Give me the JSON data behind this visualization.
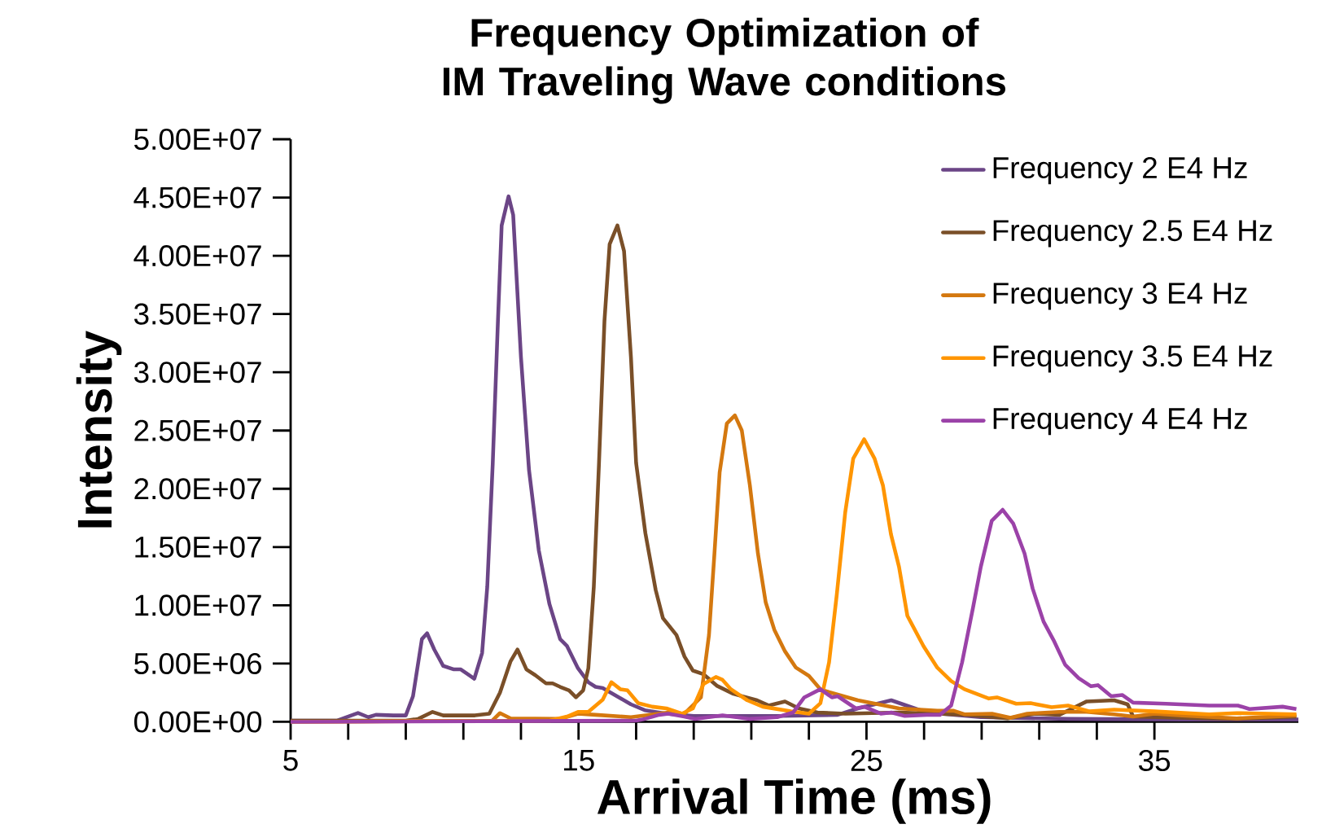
{
  "chart_data": {
    "type": "line",
    "title": "Frequency Optimization of IM Traveling Wave conditions",
    "xlabel": "Arrival Time (ms)",
    "ylabel": "Intensity",
    "xlim": [
      5,
      40
    ],
    "ylim": [
      0,
      50000000
    ],
    "xticks": [
      5,
      15,
      25,
      35
    ],
    "yticks": [
      {
        "value": 0,
        "label": "0.00E+00"
      },
      {
        "value": 5000000,
        "label": "5.00E+06"
      },
      {
        "value": 10000000,
        "label": "1.00E+07"
      },
      {
        "value": 15000000,
        "label": "1.50E+07"
      },
      {
        "value": 20000000,
        "label": "2.00E+07"
      },
      {
        "value": 25000000,
        "label": "2.50E+07"
      },
      {
        "value": 30000000,
        "label": "3.00E+07"
      },
      {
        "value": 35000000,
        "label": "3.50E+07"
      },
      {
        "value": 40000000,
        "label": "4.00E+07"
      },
      {
        "value": 45000000,
        "label": "4.50E+07"
      },
      {
        "value": 50000000,
        "label": "5.00E+07"
      }
    ],
    "legend": "top right",
    "grid": false,
    "series": [
      {
        "name": "Frequency 2 E4 Hz",
        "color": "#6b4586",
        "x": [
          5,
          6.6,
          7.34,
          7.7,
          7.96,
          8.57,
          9.0,
          9.25,
          9.56,
          9.74,
          9.99,
          10.3,
          10.67,
          10.91,
          11.2,
          11.38,
          11.65,
          11.83,
          12.02,
          12.2,
          12.33,
          12.57,
          12.73,
          13.0,
          13.28,
          13.62,
          13.99,
          14.36,
          14.6,
          14.98,
          15.34,
          15.59,
          15.84,
          16.33,
          16.82,
          17.3,
          18.05,
          19.0,
          20.0,
          22.0,
          24.0,
          24.7,
          25.86,
          27.09,
          28.97,
          32.0,
          36.0,
          40.0
        ],
        "values": [
          100000,
          100000,
          760000,
          400000,
          600000,
          550000,
          550000,
          2200000,
          7100000,
          7600000,
          6200000,
          4800000,
          4500000,
          4500000,
          4000000,
          3700000,
          5900000,
          11600000,
          22200000,
          34400000,
          42600000,
          45100000,
          43500000,
          31300000,
          21600000,
          14700000,
          10100000,
          7100000,
          6500000,
          4600000,
          3400000,
          3000000,
          2900000,
          2200000,
          1500000,
          1000000,
          700000,
          500000,
          500000,
          500000,
          600000,
          1150000,
          1850000,
          800000,
          400000,
          250000,
          200000,
          200000
        ]
      },
      {
        "name": "Frequency 2.5 E4 Hz",
        "color": "#7a4f28",
        "x": [
          5,
          9.0,
          9.43,
          9.93,
          10.3,
          11.4,
          11.9,
          12.27,
          12.64,
          12.88,
          13.19,
          13.5,
          13.87,
          14.1,
          14.36,
          14.67,
          14.91,
          15.16,
          15.34,
          15.53,
          15.71,
          15.9,
          16.08,
          16.35,
          16.58,
          16.82,
          17.0,
          17.32,
          17.68,
          17.93,
          18.4,
          18.68,
          18.97,
          19.33,
          19.8,
          20.38,
          21.2,
          21.6,
          22.17,
          22.65,
          23.3,
          24.26,
          26.13,
          27.5,
          28.5,
          29.9,
          30.86,
          31.7,
          32.65,
          33.6,
          34.07,
          34.26,
          35.96,
          37.86,
          39.93
        ],
        "values": [
          100000,
          100000,
          250000,
          850000,
          550000,
          550000,
          700000,
          2500000,
          5200000,
          6200000,
          4500000,
          4000000,
          3300000,
          3300000,
          3000000,
          2700000,
          2100000,
          2700000,
          4600000,
          11600000,
          22200000,
          34400000,
          41000000,
          42600000,
          40400000,
          31300000,
          22200000,
          16200000,
          11300000,
          8900000,
          7450000,
          5600000,
          4400000,
          4100000,
          3100000,
          2400000,
          1850000,
          1400000,
          1750000,
          1150000,
          800000,
          700000,
          800000,
          700000,
          600000,
          300000,
          700000,
          600000,
          1750000,
          1850000,
          1500000,
          450000,
          350000,
          250000,
          450000
        ]
      },
      {
        "name": "Frequency 3 E4 Hz",
        "color": "#d4780f",
        "x": [
          5,
          12.0,
          12.27,
          12.64,
          14.36,
          14.98,
          15.59,
          16.82,
          18.12,
          18.68,
          19.25,
          19.53,
          19.72,
          19.9,
          20.15,
          20.43,
          20.67,
          20.95,
          21.23,
          21.5,
          21.8,
          22.17,
          22.55,
          23.0,
          23.4,
          23.7,
          24.7,
          26.13,
          27.46,
          28.03,
          28.4,
          29.36,
          30.0,
          30.58,
          31.7,
          32.65,
          33.6,
          34.26,
          35.0,
          35.96,
          37.86,
          39.93
        ],
        "values": [
          0,
          100000,
          750000,
          300000,
          250000,
          700000,
          600000,
          400000,
          800000,
          700000,
          2100000,
          7450000,
          14450000,
          21400000,
          25600000,
          26300000,
          25000000,
          20300000,
          14450000,
          10250000,
          7900000,
          6050000,
          4650000,
          3950000,
          2800000,
          2550000,
          1850000,
          1150000,
          950000,
          950000,
          650000,
          700000,
          350000,
          700000,
          850000,
          850000,
          650000,
          450000,
          700000,
          550000,
          300000,
          550000
        ]
      },
      {
        "name": "Frequency 3.5 E4 Hz",
        "color": "#ff9500",
        "x": [
          5,
          14.0,
          14.6,
          14.98,
          15.34,
          15.84,
          16.14,
          16.45,
          16.7,
          17.07,
          17.56,
          18.05,
          18.59,
          18.97,
          19.34,
          19.77,
          20.0,
          20.29,
          20.86,
          21.4,
          22.37,
          23.0,
          23.4,
          23.7,
          23.97,
          24.26,
          24.54,
          24.92,
          25.28,
          25.57,
          25.85,
          26.13,
          26.42,
          26.98,
          27.46,
          27.94,
          28.4,
          29.25,
          29.53,
          30.2,
          30.7,
          31.43,
          32.0,
          32.75,
          33.6,
          35.0,
          36.9,
          37.86,
          39.93
        ],
        "values": [
          0,
          100000,
          450000,
          850000,
          850000,
          1900000,
          3400000,
          2800000,
          2700000,
          1600000,
          1300000,
          1150000,
          700000,
          1150000,
          3250000,
          3850000,
          3600000,
          2800000,
          1850000,
          1300000,
          900000,
          700000,
          1600000,
          5100000,
          10950000,
          17950000,
          22600000,
          24250000,
          22600000,
          20300000,
          16100000,
          13300000,
          9100000,
          6500000,
          4650000,
          3500000,
          2800000,
          2000000,
          2100000,
          1550000,
          1600000,
          1250000,
          1400000,
          900000,
          1050000,
          900000,
          650000,
          750000,
          650000
        ]
      },
      {
        "name": "Frequency 4 E4 Hz",
        "color": "#9b42a8",
        "x": [
          5,
          17.0,
          17.3,
          17.8,
          18.12,
          18.67,
          19.05,
          20.0,
          20.95,
          21.9,
          22.45,
          22.84,
          23.4,
          23.8,
          24.0,
          24.63,
          24.92,
          25.5,
          25.86,
          26.33,
          27.09,
          27.55,
          27.94,
          28.32,
          28.7,
          28.97,
          29.35,
          29.73,
          30.1,
          30.49,
          30.77,
          31.15,
          31.5,
          31.9,
          32.37,
          32.8,
          33.04,
          33.5,
          33.89,
          34.26,
          35.4,
          36.9,
          37.9,
          38.3,
          39.45,
          39.93
        ],
        "values": [
          0,
          100000,
          250000,
          600000,
          700000,
          450000,
          250000,
          550000,
          250000,
          400000,
          800000,
          2100000,
          2800000,
          2100000,
          2200000,
          1150000,
          1300000,
          700000,
          800000,
          500000,
          600000,
          600000,
          1400000,
          5100000,
          9800000,
          13300000,
          17250000,
          18200000,
          17000000,
          14450000,
          11450000,
          8600000,
          7000000,
          4900000,
          3750000,
          3050000,
          3150000,
          2200000,
          2300000,
          1650000,
          1550000,
          1400000,
          1400000,
          1100000,
          1300000,
          1100000
        ]
      }
    ]
  }
}
